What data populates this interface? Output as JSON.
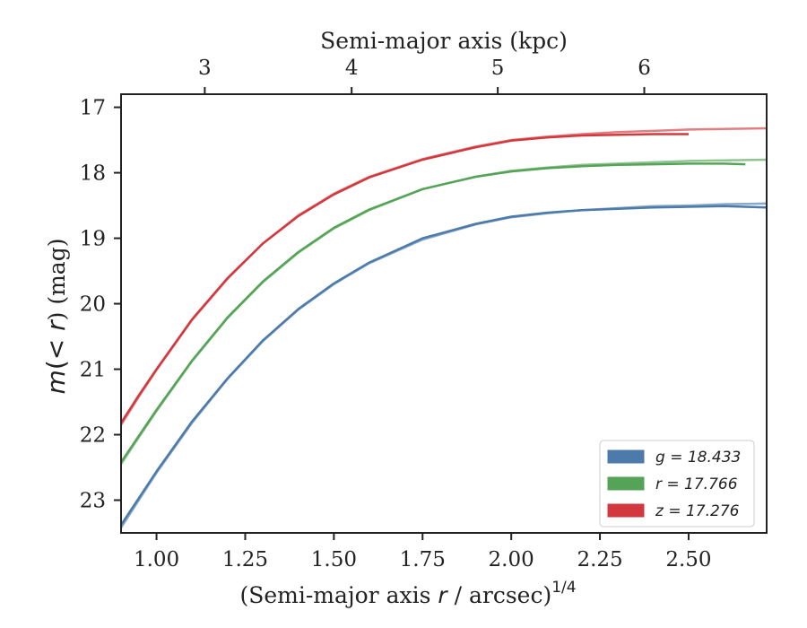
{
  "chart_data": {
    "type": "line",
    "xlabel": "(Semi-major axis r / arcsec)^{1/4}",
    "xlabel_parts": {
      "pre": "(Semi-major axis ",
      "var": "r",
      "post": " / arcsec)",
      "sup": "1/4"
    },
    "ylabel": "m(< r) (mag)",
    "ylabel_parts": {
      "var": "m",
      "mid": "(< ",
      "var2": "r",
      "post": ") (mag)"
    },
    "top_xlabel": "Semi-major axis (kpc)",
    "xlim": [
      0.9,
      2.72
    ],
    "ylim": [
      23.5,
      16.8
    ],
    "y_inverted": true,
    "x_ticks": [
      "1.00",
      "1.25",
      "1.50",
      "1.75",
      "2.00",
      "2.25",
      "2.50"
    ],
    "y_ticks": [
      "17",
      "18",
      "19",
      "20",
      "21",
      "22",
      "23"
    ],
    "top_ticks": [
      {
        "label": "3",
        "x": 1.136
      },
      {
        "label": "4",
        "x": 1.55
      },
      {
        "label": "5",
        "x": 1.962
      },
      {
        "label": "6",
        "x": 2.375
      }
    ],
    "legend_position": "lower-right",
    "legend": [
      {
        "text": "g = 18.433",
        "color": "#4c7bab"
      },
      {
        "text": "r = 17.766",
        "color": "#55a356"
      },
      {
        "text": "z = 17.276",
        "color": "#d2393e"
      }
    ],
    "series": [
      {
        "name": "g = 18.433",
        "color": "#4c7bab",
        "model": {
          "x": [
            0.9,
            0.95,
            1.0,
            1.1,
            1.2,
            1.3,
            1.4,
            1.5,
            1.6,
            1.75,
            1.9,
            2.0,
            2.1,
            2.2,
            2.3,
            2.4,
            2.5,
            2.6,
            2.72
          ],
          "y": [
            23.42,
            23.0,
            22.58,
            21.82,
            21.15,
            20.57,
            20.09,
            19.7,
            19.38,
            19.02,
            18.79,
            18.68,
            18.62,
            18.57,
            18.54,
            18.51,
            18.5,
            18.48,
            18.47
          ]
        },
        "data": {
          "x": [
            0.9,
            0.95,
            1.0,
            1.1,
            1.2,
            1.3,
            1.4,
            1.5,
            1.6,
            1.75,
            1.9,
            2.0,
            2.1,
            2.2,
            2.3,
            2.4,
            2.5,
            2.6,
            2.72
          ],
          "y": [
            23.38,
            22.97,
            22.56,
            21.8,
            21.14,
            20.56,
            20.08,
            19.69,
            19.37,
            19.0,
            18.78,
            18.67,
            18.61,
            18.57,
            18.55,
            18.53,
            18.52,
            18.51,
            18.53
          ]
        }
      },
      {
        "name": "r = 17.766",
        "color": "#55a356",
        "model": {
          "x": [
            0.9,
            0.95,
            1.0,
            1.1,
            1.2,
            1.3,
            1.4,
            1.5,
            1.6,
            1.75,
            1.9,
            2.0,
            2.1,
            2.2,
            2.3,
            2.4,
            2.5,
            2.6,
            2.72
          ],
          "y": [
            22.45,
            22.04,
            21.64,
            20.88,
            20.22,
            19.67,
            19.22,
            18.85,
            18.57,
            18.25,
            18.06,
            17.97,
            17.92,
            17.88,
            17.86,
            17.84,
            17.82,
            17.81,
            17.8
          ]
        },
        "data": {
          "x": [
            0.9,
            0.95,
            1.0,
            1.1,
            1.2,
            1.3,
            1.4,
            1.5,
            1.6,
            1.75,
            1.9,
            2.0,
            2.1,
            2.2,
            2.3,
            2.4,
            2.5,
            2.6,
            2.66
          ],
          "y": [
            22.42,
            22.02,
            21.62,
            20.87,
            20.21,
            19.66,
            19.21,
            18.84,
            18.56,
            18.25,
            18.06,
            17.98,
            17.93,
            17.9,
            17.88,
            17.87,
            17.86,
            17.86,
            17.87
          ]
        }
      },
      {
        "name": "z = 17.276",
        "color": "#d2393e",
        "model": {
          "x": [
            0.9,
            0.95,
            1.0,
            1.1,
            1.2,
            1.3,
            1.4,
            1.5,
            1.6,
            1.75,
            1.9,
            2.0,
            2.1,
            2.2,
            2.3,
            2.4,
            2.5,
            2.6,
            2.72
          ],
          "y": [
            21.85,
            21.42,
            21.01,
            20.25,
            19.62,
            19.08,
            18.65,
            18.32,
            18.06,
            17.79,
            17.6,
            17.5,
            17.45,
            17.41,
            17.38,
            17.36,
            17.34,
            17.33,
            17.32
          ]
        },
        "data": {
          "x": [
            0.9,
            0.95,
            1.0,
            1.1,
            1.2,
            1.3,
            1.4,
            1.5,
            1.6,
            1.75,
            1.9,
            2.0,
            2.1,
            2.2,
            2.3,
            2.4,
            2.5
          ],
          "y": [
            21.82,
            21.4,
            21.0,
            20.24,
            19.61,
            19.08,
            18.66,
            18.33,
            18.07,
            17.8,
            17.61,
            17.51,
            17.46,
            17.43,
            17.42,
            17.41,
            17.41
          ]
        }
      }
    ]
  }
}
